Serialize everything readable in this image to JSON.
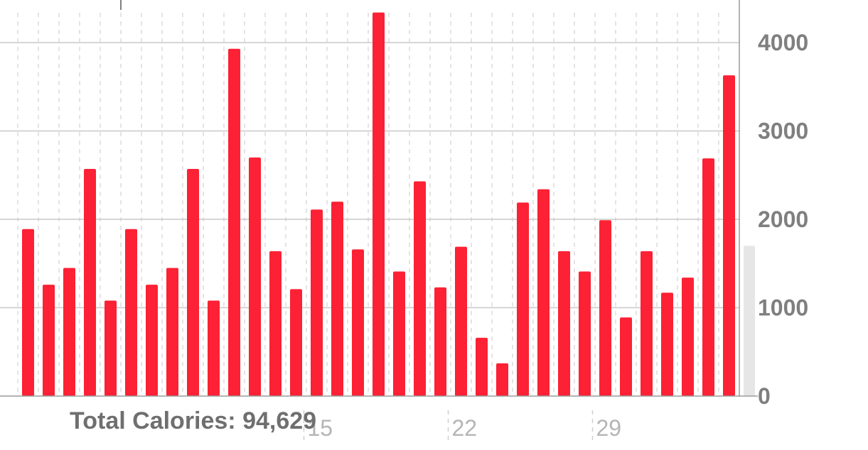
{
  "total_calories_text": "Total Calories: 94,629",
  "chart_data": {
    "type": "bar",
    "metric": "Calories",
    "y_ticks": [
      0,
      1000,
      2000,
      3000,
      4000
    ],
    "ylim": [
      0,
      4500
    ],
    "x_tick_labels": [
      {
        "day": 15,
        "label": "15"
      },
      {
        "day": 22,
        "label": "22"
      },
      {
        "day": 29,
        "label": "29"
      }
    ],
    "days": [
      1,
      2,
      3,
      4,
      5,
      6,
      7,
      8,
      9,
      10,
      11,
      12,
      13,
      14,
      15,
      16,
      17,
      18,
      19,
      20,
      21,
      22,
      23,
      24,
      25,
      26,
      27,
      28,
      29,
      30,
      31,
      32,
      33,
      34,
      35
    ],
    "values": [
      1890,
      1260,
      1450,
      2570,
      1080,
      1890,
      1260,
      1450,
      2570,
      1080,
      3930,
      2700,
      1640,
      1210,
      2110,
      2200,
      1660,
      4340,
      1410,
      2430,
      1230,
      1690,
      660,
      370,
      2190,
      2340,
      1640,
      1410,
      1990,
      890,
      1640,
      1170,
      1340,
      2690,
      3630
    ],
    "current_day_value": 1700,
    "colors": {
      "bar": "#fc2134",
      "current_day_bar": "#e6e6e6",
      "grid": "#c8c8c8",
      "axis": "#9a9a9a",
      "tick_text": "#7f7f7f",
      "date_text": "#b5b5b5"
    }
  }
}
